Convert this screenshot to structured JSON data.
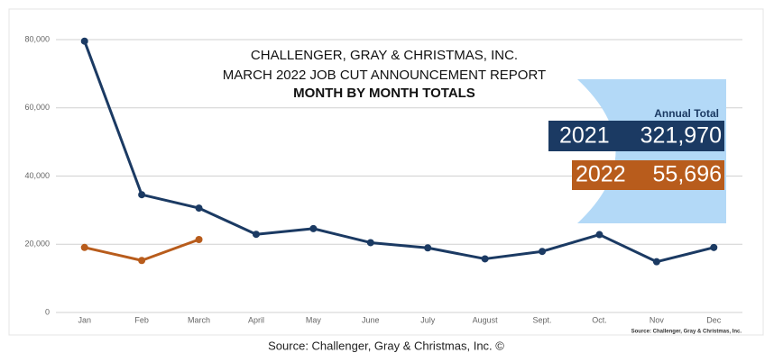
{
  "chart_data": {
    "type": "line",
    "title": [
      "CHALLENGER, GRAY & CHRISTMAS, INC.",
      "MARCH 2022 JOB CUT ANNOUNCEMENT REPORT",
      "MONTH BY MONTH TOTALS"
    ],
    "categories": [
      "Jan",
      "Feb",
      "March",
      "April",
      "May",
      "June",
      "July",
      "August",
      "Sept.",
      "Oct.",
      "Nov",
      "Dec"
    ],
    "series": [
      {
        "name": "2021",
        "color": "#1b3a63",
        "values": [
          79552,
          34531,
          30603,
          22913,
          24586,
          20476,
          18942,
          15723,
          17895,
          22822,
          14875,
          19052
        ]
      },
      {
        "name": "2022",
        "color": "#b85c1c",
        "values": [
          19064,
          15245,
          21387,
          null,
          null,
          null,
          null,
          null,
          null,
          null,
          null,
          null
        ]
      }
    ],
    "ylim": [
      0,
      80000
    ],
    "yticks": [
      0,
      {
        "value": 20000,
        "label": "20,000"
      },
      {
        "value": 40000,
        "label": "40,000"
      },
      {
        "value": 60000,
        "label": "60,000"
      },
      {
        "value": 80000,
        "label": "80,000"
      }
    ],
    "grid": true,
    "annual_totals": {
      "label": "Annual Total",
      "values": [
        321970,
        55696
      ],
      "value_labels": [
        "321,970",
        "55,696"
      ]
    },
    "source_note": "Source: Challenger, Gray & Christmas, Inc.",
    "footer": "Source: Challenger, Gray & Christmas, Inc. ©"
  }
}
